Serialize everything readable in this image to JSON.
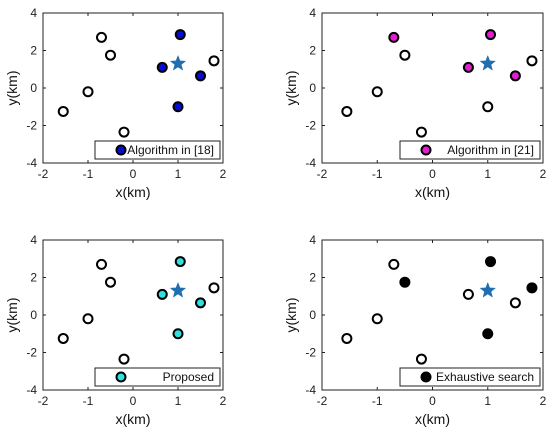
{
  "chart_data": [
    {
      "type": "scatter",
      "xlabel": "x(km)",
      "ylabel": "y(km)",
      "xlim": [
        -2,
        2
      ],
      "ylim": [
        -4,
        4
      ],
      "xticks": [
        "-2",
        "-1",
        "0",
        "1",
        "2"
      ],
      "yticks": [
        "-4",
        "-2",
        "0",
        "2",
        "4"
      ],
      "legend": "Algorithm in [18]",
      "legend_position": "bottom-right",
      "selected_color": "#0a0ad8",
      "star": {
        "x": 1.0,
        "y": 1.3
      },
      "points": [
        {
          "x": -1.55,
          "y": -1.25,
          "selected": false
        },
        {
          "x": -1.0,
          "y": -0.2,
          "selected": false
        },
        {
          "x": -0.7,
          "y": 2.7,
          "selected": false
        },
        {
          "x": -0.5,
          "y": 1.75,
          "selected": false
        },
        {
          "x": -0.2,
          "y": -2.35,
          "selected": false
        },
        {
          "x": 0.65,
          "y": 1.1,
          "selected": true
        },
        {
          "x": 1.05,
          "y": 2.85,
          "selected": true
        },
        {
          "x": 1.0,
          "y": -1.0,
          "selected": true
        },
        {
          "x": 1.5,
          "y": 0.65,
          "selected": true
        },
        {
          "x": 1.8,
          "y": 1.45,
          "selected": false
        }
      ]
    },
    {
      "type": "scatter",
      "xlabel": "x(km)",
      "ylabel": "y(km)",
      "xlim": [
        -2,
        2
      ],
      "ylim": [
        -4,
        4
      ],
      "xticks": [
        "-2",
        "-1",
        "0",
        "1",
        "2"
      ],
      "yticks": [
        "-4",
        "-2",
        "0",
        "2",
        "4"
      ],
      "legend": "Algorithm in [21]",
      "legend_position": "bottom-right",
      "selected_color": "#e020d0",
      "star": {
        "x": 1.0,
        "y": 1.3
      },
      "points": [
        {
          "x": -1.55,
          "y": -1.25,
          "selected": false
        },
        {
          "x": -1.0,
          "y": -0.2,
          "selected": false
        },
        {
          "x": -0.7,
          "y": 2.7,
          "selected": true
        },
        {
          "x": -0.5,
          "y": 1.75,
          "selected": false
        },
        {
          "x": -0.2,
          "y": -2.35,
          "selected": false
        },
        {
          "x": 0.65,
          "y": 1.1,
          "selected": true
        },
        {
          "x": 1.05,
          "y": 2.85,
          "selected": true
        },
        {
          "x": 1.0,
          "y": -1.0,
          "selected": false
        },
        {
          "x": 1.5,
          "y": 0.65,
          "selected": true
        },
        {
          "x": 1.8,
          "y": 1.45,
          "selected": false
        }
      ]
    },
    {
      "type": "scatter",
      "xlabel": "x(km)",
      "ylabel": "y(km)",
      "xlim": [
        -2,
        2
      ],
      "ylim": [
        -4,
        4
      ],
      "xticks": [
        "-2",
        "-1",
        "0",
        "1",
        "2"
      ],
      "yticks": [
        "-4",
        "-2",
        "0",
        "2",
        "4"
      ],
      "legend": "Proposed",
      "legend_position": "bottom-right",
      "selected_color": "#30e0e0",
      "star": {
        "x": 1.0,
        "y": 1.3
      },
      "points": [
        {
          "x": -1.55,
          "y": -1.25,
          "selected": false
        },
        {
          "x": -1.0,
          "y": -0.2,
          "selected": false
        },
        {
          "x": -0.7,
          "y": 2.7,
          "selected": false
        },
        {
          "x": -0.5,
          "y": 1.75,
          "selected": false
        },
        {
          "x": -0.2,
          "y": -2.35,
          "selected": false
        },
        {
          "x": 0.65,
          "y": 1.1,
          "selected": true
        },
        {
          "x": 1.05,
          "y": 2.85,
          "selected": true
        },
        {
          "x": 1.0,
          "y": -1.0,
          "selected": true
        },
        {
          "x": 1.5,
          "y": 0.65,
          "selected": true
        },
        {
          "x": 1.8,
          "y": 1.45,
          "selected": false
        }
      ]
    },
    {
      "type": "scatter",
      "xlabel": "x(km)",
      "ylabel": "y(km)",
      "xlim": [
        -2,
        2
      ],
      "ylim": [
        -4,
        4
      ],
      "xticks": [
        "-2",
        "-1",
        "0",
        "1",
        "2"
      ],
      "yticks": [
        "-4",
        "-2",
        "0",
        "2",
        "4"
      ],
      "legend": "Exhaustive search",
      "legend_position": "bottom-right",
      "selected_color": "#000000",
      "star": {
        "x": 1.0,
        "y": 1.3
      },
      "points": [
        {
          "x": -1.55,
          "y": -1.25,
          "selected": false
        },
        {
          "x": -1.0,
          "y": -0.2,
          "selected": false
        },
        {
          "x": -0.7,
          "y": 2.7,
          "selected": false
        },
        {
          "x": -0.5,
          "y": 1.75,
          "selected": true
        },
        {
          "x": -0.2,
          "y": -2.35,
          "selected": false
        },
        {
          "x": 0.65,
          "y": 1.1,
          "selected": false
        },
        {
          "x": 1.05,
          "y": 2.85,
          "selected": true
        },
        {
          "x": 1.0,
          "y": -1.0,
          "selected": true
        },
        {
          "x": 1.5,
          "y": 0.65,
          "selected": false
        },
        {
          "x": 1.8,
          "y": 1.45,
          "selected": true
        }
      ]
    }
  ],
  "colors": {
    "star": "#1f6fb0",
    "marker_edge": "#000000",
    "open_fill": "#ffffff"
  }
}
